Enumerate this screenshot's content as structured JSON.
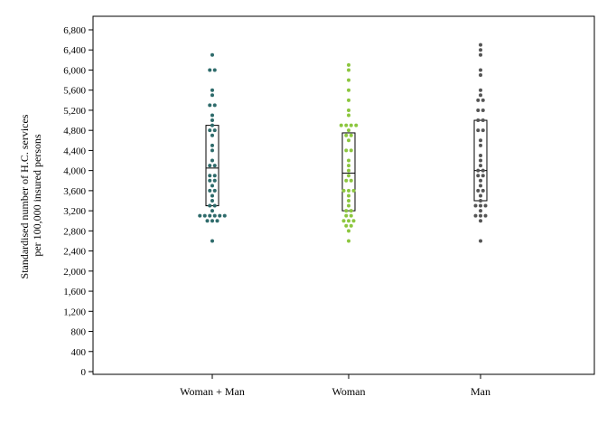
{
  "chart_data": {
    "type": "scatter",
    "subtype": "dot-strip with box overlay",
    "ylabel_lines": [
      "Standardised number of H.C. services",
      "per 100,000 insured persons"
    ],
    "ylim": [
      0,
      6900
    ],
    "yticks": [
      0,
      400,
      800,
      1200,
      1600,
      2000,
      2400,
      2800,
      3200,
      3600,
      4000,
      4400,
      4800,
      5200,
      5600,
      6000,
      6400,
      6800
    ],
    "ytick_labels": [
      "0",
      "400",
      "800",
      "1,200",
      "1,600",
      "2,000",
      "2,400",
      "2,800",
      "3,200",
      "3,600",
      "4,000",
      "4,400",
      "4,800",
      "5,200",
      "5,600",
      "6,000",
      "6,400",
      "6,800"
    ],
    "grid": false,
    "categories": [
      "Woman + Man",
      "Woman",
      "Man"
    ],
    "series": [
      {
        "category": "Woman + Man",
        "color": "#2e6b6b",
        "box": {
          "q1": 3300,
          "median": 4050,
          "q3": 4900
        },
        "values": [
          6300,
          6000,
          6000,
          5600,
          5500,
          5300,
          5300,
          5100,
          5000,
          4900,
          4800,
          4800,
          4700,
          4500,
          4400,
          4200,
          4100,
          4100,
          3900,
          3900,
          3800,
          3800,
          3700,
          3600,
          3600,
          3500,
          3400,
          3300,
          3300,
          3200,
          3100,
          3100,
          3100,
          3100,
          3100,
          3100,
          3000,
          3000,
          3000,
          2600
        ]
      },
      {
        "category": "Woman",
        "color": "#8cc63f",
        "box": {
          "q1": 3200,
          "median": 3950,
          "q3": 4750
        },
        "values": [
          6100,
          6000,
          5800,
          5600,
          5400,
          5200,
          5100,
          4900,
          4900,
          4900,
          4900,
          4800,
          4700,
          4700,
          4600,
          4400,
          4400,
          4200,
          4100,
          4000,
          3900,
          3800,
          3800,
          3600,
          3600,
          3600,
          3500,
          3400,
          3300,
          3200,
          3200,
          3100,
          3100,
          3000,
          3000,
          3000,
          2900,
          2900,
          2800,
          2600
        ]
      },
      {
        "category": "Man",
        "color": "#555555",
        "box": {
          "q1": 3400,
          "median": 4000,
          "q3": 5000
        },
        "values": [
          6500,
          6400,
          6300,
          6000,
          5900,
          5600,
          5500,
          5400,
          5400,
          5200,
          5200,
          5000,
          5000,
          4800,
          4800,
          4600,
          4500,
          4300,
          4200,
          4100,
          4000,
          4000,
          3900,
          3900,
          3800,
          3700,
          3600,
          3600,
          3500,
          3400,
          3300,
          3300,
          3300,
          3200,
          3100,
          3100,
          3100,
          3000,
          2600
        ]
      }
    ]
  }
}
